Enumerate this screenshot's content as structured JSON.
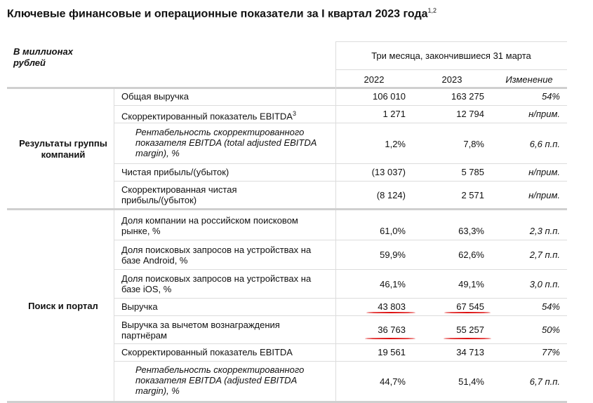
{
  "title": "Ключевые финансовые и операционные показатели за I квартал 2023 года",
  "title_sup": "1,2",
  "unit_label_line1": "В миллионах",
  "unit_label_line2": "рублей",
  "period": "Три месяца, закончившиеся 31 марта",
  "col_2022": "2022",
  "col_2023": "2023",
  "col_change": "Изменение",
  "groups": {
    "g1_line1": "Результаты группы",
    "g1_line2": "компаний",
    "g2": "Поиск и портал"
  },
  "rows": [
    {
      "l1": "Общая выручка",
      "v2022": "106 010",
      "v2023": "163 275",
      "chg": "54%"
    },
    {
      "l1": "Скорректированный показатель EBITDA",
      "sup": "3",
      "v2022": "1 271",
      "v2023": "12 794",
      "chg": "н/прим."
    },
    {
      "l1": "Рентабельность скорректированного",
      "l2": "показателя EBITDA (total adjusted EBITDA",
      "l3": "margin), %",
      "v2022": "1,2%",
      "v2023": "7,8%",
      "chg": "6,6 п.п."
    },
    {
      "l1": "Чистая прибыль/(убыток)",
      "v2022": "(13 037)",
      "v2023": "5 785",
      "chg": "н/прим."
    },
    {
      "l1": "Скорректированная чистая",
      "l2": "прибыль/(убыток)",
      "v2022": "(8 124)",
      "v2023": "2 571",
      "chg": "н/прим."
    },
    {
      "l1": "Доля компании на российском поисковом",
      "l2": "рынке, %",
      "v2022": "61,0%",
      "v2023": "63,3%",
      "chg": "2,3 п.п."
    },
    {
      "l1": "Доля поисковых запросов на устройствах на",
      "l2": "базе Android, %",
      "v2022": "59,9%",
      "v2023": "62,6%",
      "chg": "2,7 п.п."
    },
    {
      "l1": "Доля поисковых запросов на устройствах на",
      "l2": "базе iOS, %",
      "v2022": "46,1%",
      "v2023": "49,1%",
      "chg": "3,0 п.п."
    },
    {
      "l1": "Выручка",
      "v2022": "43 803",
      "v2023": "67 545",
      "chg": "54%"
    },
    {
      "l1": "Выручка за вычетом вознаграждения",
      "l2": "партнёрам",
      "v2022": "36 763",
      "v2023": "55 257",
      "chg": "50%"
    },
    {
      "l1": "Скорректированный показатель EBITDA",
      "v2022": "19 561",
      "v2023": "34 713",
      "chg": "77%"
    },
    {
      "l1": "Рентабельность скорректированного",
      "l2": "показателя EBITDA (adjusted EBITDA",
      "l3": "margin), %",
      "v2022": "44,7%",
      "v2023": "51,4%",
      "chg": "6,7 п.п."
    }
  ]
}
